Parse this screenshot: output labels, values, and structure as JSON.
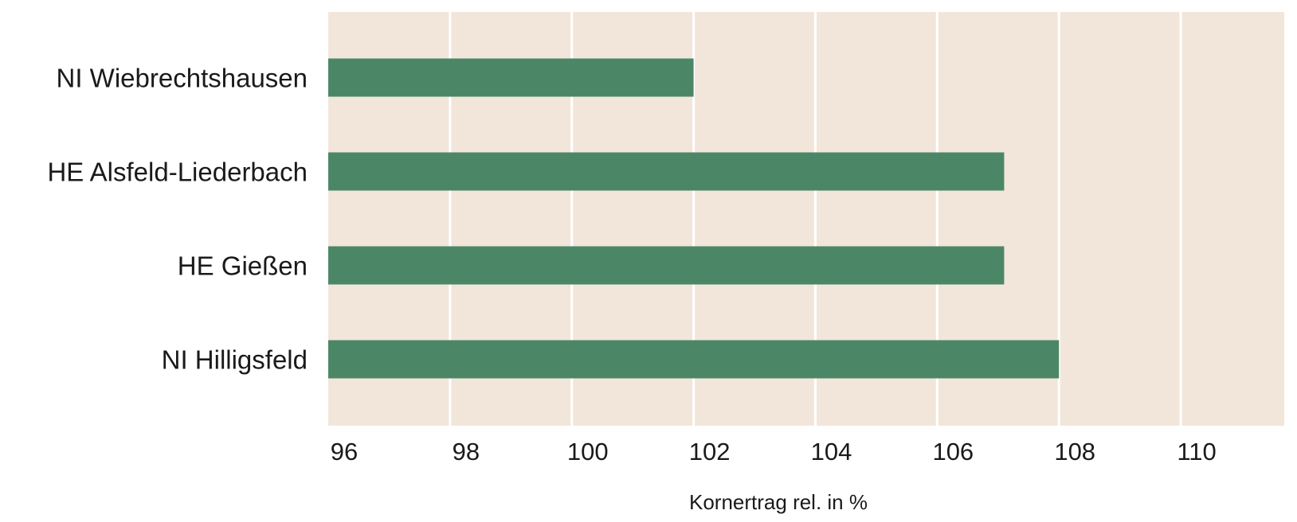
{
  "chart_data": {
    "type": "bar",
    "orientation": "horizontal",
    "categories": [
      "NI Wiebrechtshausen",
      "HE Alsfeld-Liederbach",
      "HE Gießen",
      "NI Hilligsfeld"
    ],
    "values": [
      102.0,
      107.1,
      107.1,
      108.0
    ],
    "xlabel": "Kornertrag rel. in %",
    "xlim": [
      96,
      111.7
    ],
    "xticks": [
      96,
      98,
      100,
      102,
      104,
      106,
      108,
      110
    ],
    "tick_labels": [
      "96",
      "98",
      "100",
      "102",
      "104",
      "106",
      "108",
      "110"
    ],
    "grid": "vertical",
    "colors": {
      "bar": "#4b8766",
      "plot_background": "#f2e6db",
      "gridline": "#ffffff"
    }
  }
}
